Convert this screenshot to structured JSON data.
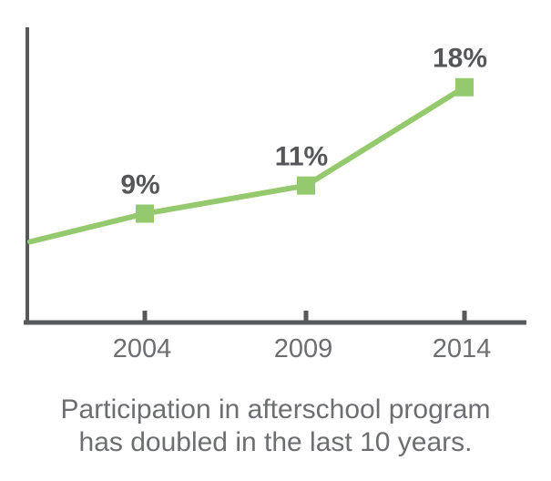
{
  "chart_data": {
    "type": "line",
    "categories": [
      "2004",
      "2009",
      "2014"
    ],
    "values": [
      9,
      11,
      18
    ],
    "point_labels": [
      "9%",
      "11%",
      "18%"
    ],
    "unlabeled_lead_in_value": 7,
    "title": "",
    "xlabel": "",
    "ylabel": "",
    "grid": false,
    "legend": "none",
    "marker": "square",
    "line_color": "#95c96e",
    "axis_color": "#58595b",
    "point_label_color": "#54565a",
    "tick_label_color": "#6d6e71"
  },
  "caption": {
    "line1": "Participation in afterschool program",
    "line2": "has doubled in the last 10 years."
  },
  "colors": {
    "background": "#ffffff",
    "accent_green": "#95c96e",
    "axis_gray": "#58595b",
    "text_gray": "#6d6e71"
  }
}
